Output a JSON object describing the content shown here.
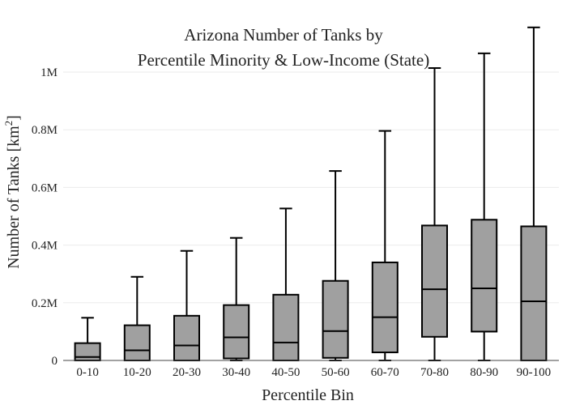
{
  "chart_data": {
    "type": "box",
    "title_lines": [
      "Arizona Number of Tanks by",
      "Percentile Minority & Low-Income (State)"
    ],
    "xlabel": "Percentile Bin",
    "ylabel_main": "Number of Tanks  [km",
    "ylabel_sup": "2",
    "ylabel_end": "]",
    "ylim": [
      0,
      1150000
    ],
    "y_ticks": [
      0,
      200000,
      400000,
      600000,
      800000,
      1000000
    ],
    "y_tick_labels": [
      "0",
      "0.2M",
      "0.4M",
      "0.6M",
      "0.8M",
      "1M"
    ],
    "grid": true,
    "categories": [
      "0-10",
      "10-20",
      "20-30",
      "30-40",
      "40-50",
      "50-60",
      "60-70",
      "70-80",
      "80-90",
      "90-100"
    ],
    "boxes": [
      {
        "min": 0,
        "q1": 0,
        "median": 12000,
        "q3": 60000,
        "max": 148000
      },
      {
        "min": 0,
        "q1": 0,
        "median": 35000,
        "q3": 122000,
        "max": 290000
      },
      {
        "min": 0,
        "q1": 0,
        "median": 52000,
        "q3": 155000,
        "max": 380000
      },
      {
        "min": 0,
        "q1": 7000,
        "median": 80000,
        "q3": 192000,
        "max": 425000
      },
      {
        "min": 0,
        "q1": 0,
        "median": 62000,
        "q3": 228000,
        "max": 527000
      },
      {
        "min": 0,
        "q1": 9000,
        "median": 102000,
        "q3": 276000,
        "max": 657000
      },
      {
        "min": 0,
        "q1": 28000,
        "median": 150000,
        "q3": 340000,
        "max": 796000
      },
      {
        "min": 0,
        "q1": 82000,
        "median": 247000,
        "q3": 468000,
        "max": 1014000
      },
      {
        "min": 0,
        "q1": 100000,
        "median": 250000,
        "q3": 488000,
        "max": 1065000
      },
      {
        "min": 0,
        "q1": 0,
        "median": 205000,
        "q3": 465000,
        "max": 1155000
      }
    ],
    "box_fill": "#a0a0a0",
    "line_color": "#000000"
  }
}
